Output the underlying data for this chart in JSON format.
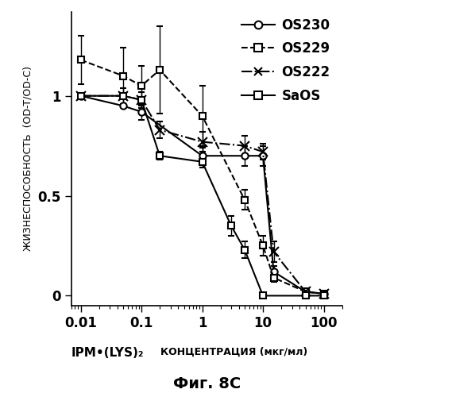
{
  "title": "Фиг. 8C",
  "ylabel": "ЖИЗНЕСПОСОБНОСТЬ  (OD-T/OD-C)",
  "xlabel_ipm": "IPM•(LYS)₂",
  "xlabel_conc": "КОНЦЕНТРАЦИЯ (мкг/мл)",
  "xlim": [
    0.007,
    200
  ],
  "ylim": [
    -0.05,
    1.42
  ],
  "yticks": [
    0,
    0.5,
    1
  ],
  "series": {
    "OS230": {
      "x": [
        0.01,
        0.05,
        0.1,
        1.0,
        5.0,
        10.0,
        15.0,
        50.0,
        100.0
      ],
      "y": [
        1.0,
        0.95,
        0.92,
        0.7,
        0.7,
        0.7,
        0.12,
        0.02,
        0.01
      ],
      "yerr": [
        0.0,
        0.0,
        0.04,
        0.04,
        0.05,
        0.05,
        0.03,
        0.01,
        0.0
      ],
      "linestyle": "-",
      "marker": "o",
      "markersize": 6,
      "markerfacecolor": "white",
      "linewidth": 1.5
    },
    "OS229": {
      "x": [
        0.01,
        0.05,
        0.1,
        0.2,
        1.0,
        5.0,
        10.0,
        15.0,
        50.0,
        100.0
      ],
      "y": [
        1.18,
        1.1,
        1.05,
        1.13,
        0.9,
        0.48,
        0.25,
        0.09,
        0.02,
        0.01
      ],
      "yerr": [
        0.12,
        0.14,
        0.1,
        0.22,
        0.15,
        0.05,
        0.05,
        0.02,
        0.01,
        0.0
      ],
      "linestyle": "--",
      "marker": "s",
      "markersize": 6,
      "markerfacecolor": "white",
      "linewidth": 1.5
    },
    "OS222": {
      "x": [
        0.01,
        0.05,
        0.1,
        0.2,
        1.0,
        5.0,
        10.0,
        15.0,
        50.0,
        100.0
      ],
      "y": [
        1.0,
        1.0,
        0.98,
        0.83,
        0.77,
        0.75,
        0.72,
        0.22,
        0.02,
        0.01
      ],
      "yerr": [
        0.0,
        0.04,
        0.04,
        0.04,
        0.05,
        0.05,
        0.04,
        0.05,
        0.01,
        0.0
      ],
      "linestyle": "-.",
      "marker": "x",
      "markersize": 8,
      "markerfacecolor": "black",
      "linewidth": 1.5
    },
    "SaOS": {
      "x": [
        0.01,
        0.05,
        0.1,
        0.2,
        1.0,
        3.0,
        5.0,
        10.0,
        50.0,
        100.0
      ],
      "y": [
        1.0,
        1.0,
        0.98,
        0.7,
        0.67,
        0.35,
        0.23,
        0.0,
        0.0,
        0.0
      ],
      "yerr": [
        0.0,
        0.0,
        0.0,
        0.02,
        0.03,
        0.05,
        0.04,
        0.01,
        0.0,
        0.0
      ],
      "linestyle": "-",
      "marker": "s",
      "markersize": 6,
      "markerfacecolor": "white",
      "linewidth": 1.5
    }
  },
  "legend_order": [
    "OS230",
    "OS229",
    "OS222",
    "SaOS"
  ],
  "legend_linestyles": [
    "-",
    "--",
    "-.",
    "-"
  ],
  "legend_markers": [
    "o",
    "s",
    "x",
    "s"
  ],
  "legend_markerfacecolors": [
    "white",
    "white",
    "black",
    "white"
  ],
  "background_color": "#ffffff"
}
